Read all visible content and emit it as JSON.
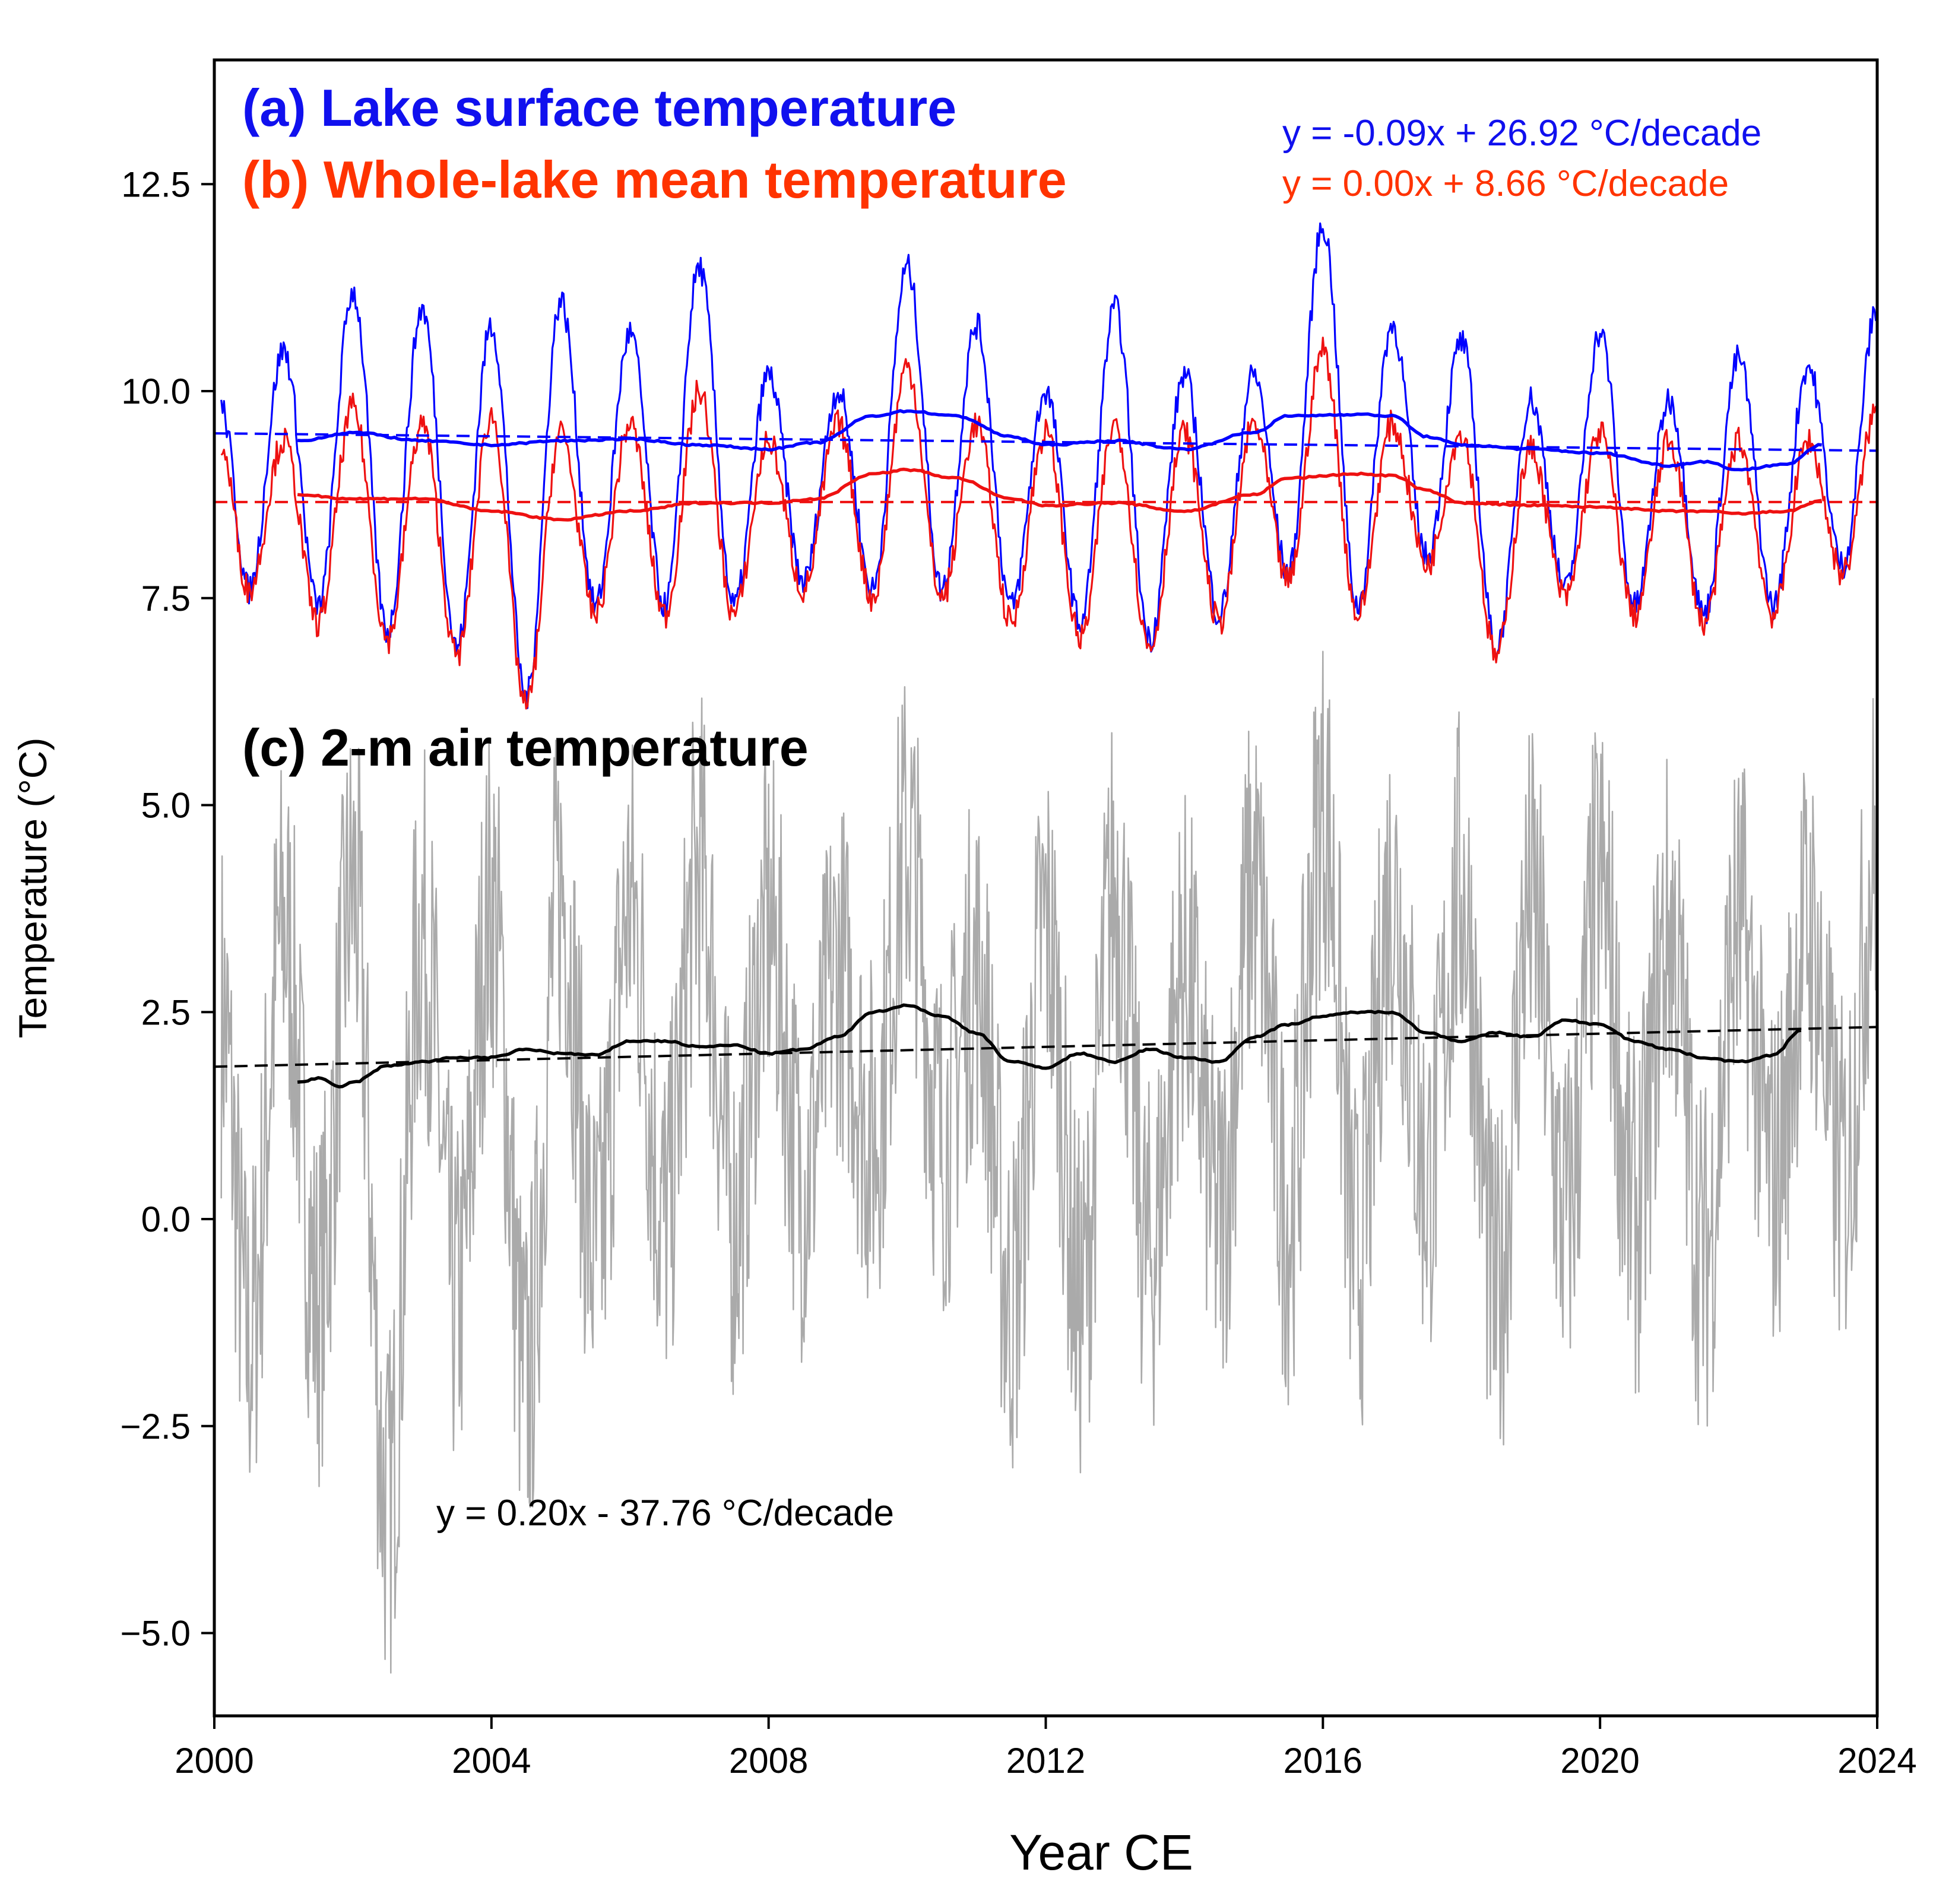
{
  "chart_data": {
    "type": "line",
    "xlabel": "Year CE",
    "ylabel": "Temperature (°C)",
    "xlim": [
      2000,
      2024
    ],
    "ylim": [
      -6,
      14
    ],
    "x_ticks": [
      2000,
      2004,
      2008,
      2012,
      2016,
      2020,
      2024
    ],
    "x_tick_labels": [
      "2000",
      "2004",
      "2008",
      "2012",
      "2016",
      "2020",
      "2024"
    ],
    "y_ticks": [
      -5,
      -2.5,
      0,
      2.5,
      5,
      7.5,
      10,
      12.5
    ],
    "y_tick_labels": [
      "−5.0",
      "−2.5",
      "0.0",
      "2.5",
      "5.0",
      "7.5",
      "10.0",
      "12.5"
    ],
    "grid": false,
    "panel_labels": [
      {
        "text": "(a) Lake surface temperature",
        "color": "#1010ee"
      },
      {
        "text": "(b) Whole-lake mean temperature",
        "color": "#ff3300"
      },
      {
        "text": "(c) 2-m air temperature",
        "color": "#000000"
      }
    ],
    "annotations": [
      {
        "text": "y = -0.09x + 26.92 °C/decade",
        "color": "#1010ee"
      },
      {
        "text": "y = 0.00x + 8.66 °C/decade",
        "color": "#ff3300"
      },
      {
        "text": "y = 0.20x - 37.76 °C/decade",
        "color": "#000000"
      }
    ],
    "series": [
      {
        "color": "#0000ff",
        "style": "thin",
        "x": [
          2000.1,
          2000.5,
          2001.0,
          2001.5,
          2002.0,
          2002.5,
          2003.0,
          2003.5,
          2004.0,
          2004.5,
          2005.0,
          2005.5,
          2006.0,
          2006.5,
          2007.0,
          2007.5,
          2008.0,
          2008.5,
          2009.0,
          2009.5,
          2010.0,
          2010.5,
          2011.0,
          2011.5,
          2012.0,
          2012.5,
          2013.0,
          2013.5,
          2014.0,
          2014.5,
          2015.0,
          2015.5,
          2016.0,
          2016.5,
          2017.0,
          2017.5,
          2018.0,
          2018.5,
          2019.0,
          2019.5,
          2020.0,
          2020.5,
          2021.0,
          2021.5,
          2022.0,
          2022.5,
          2023.0,
          2023.5,
          2024.0
        ],
        "y": [
          9.8,
          7.6,
          10.5,
          7.4,
          11.2,
          7.1,
          11.0,
          6.9,
          10.8,
          6.3,
          11.1,
          7.4,
          10.7,
          7.4,
          11.5,
          7.4,
          10.2,
          7.7,
          10.0,
          7.6,
          11.5,
          7.6,
          10.8,
          7.4,
          10.0,
          7.2,
          11.0,
          7.0,
          10.2,
          7.3,
          10.2,
          7.8,
          12.0,
          7.4,
          10.8,
          8.0,
          10.6,
          6.9,
          9.9,
          7.6,
          10.7,
          7.4,
          9.9,
          7.3,
          10.4,
          7.4,
          10.3,
          7.9,
          11.0
        ]
      },
      {
        "color": "#ee1111",
        "style": "thin",
        "x": [
          2000.1,
          2000.5,
          2001.0,
          2001.5,
          2002.0,
          2002.5,
          2003.0,
          2003.5,
          2004.0,
          2004.5,
          2005.0,
          2005.5,
          2006.0,
          2006.5,
          2007.0,
          2007.5,
          2008.0,
          2008.5,
          2009.0,
          2009.5,
          2010.0,
          2010.5,
          2011.0,
          2011.5,
          2012.0,
          2012.5,
          2013.0,
          2013.5,
          2014.0,
          2014.5,
          2015.0,
          2015.5,
          2016.0,
          2016.5,
          2017.0,
          2017.5,
          2018.0,
          2018.5,
          2019.0,
          2019.5,
          2020.0,
          2020.5,
          2021.0,
          2021.5,
          2022.0,
          2022.5,
          2023.0,
          2023.5,
          2024.0
        ],
        "y": [
          9.3,
          7.6,
          9.4,
          7.2,
          9.8,
          7.0,
          9.6,
          6.8,
          9.7,
          6.2,
          9.5,
          7.3,
          9.6,
          7.3,
          10.0,
          7.3,
          9.4,
          7.6,
          9.6,
          7.5,
          10.3,
          7.5,
          9.6,
          7.2,
          9.5,
          7.0,
          9.6,
          6.9,
          9.5,
          7.2,
          9.6,
          7.7,
          10.5,
          7.3,
          9.6,
          7.9,
          9.5,
          6.8,
          9.3,
          7.5,
          9.5,
          7.3,
          9.4,
          7.2,
          9.4,
          7.3,
          9.4,
          7.8,
          9.8
        ]
      },
      {
        "color": "#0000ff",
        "style": "running-mean",
        "x": [
          2001.2,
          2002.0,
          2003.0,
          2004.0,
          2005.0,
          2006.0,
          2007.0,
          2008.0,
          2008.7,
          2009.5,
          2010.0,
          2010.7,
          2011.5,
          2012.0,
          2013.0,
          2014.0,
          2015.0,
          2015.5,
          2016.5,
          2017.0,
          2017.5,
          2018.0,
          2019.0,
          2020.0,
          2021.0,
          2021.5,
          2022.0,
          2022.7,
          2023.2
        ],
        "y": [
          9.4,
          9.5,
          9.4,
          9.35,
          9.4,
          9.42,
          9.35,
          9.3,
          9.38,
          9.7,
          9.76,
          9.7,
          9.45,
          9.35,
          9.4,
          9.3,
          9.5,
          9.7,
          9.72,
          9.7,
          9.45,
          9.35,
          9.3,
          9.25,
          9.1,
          9.15,
          9.05,
          9.12,
          9.35
        ]
      },
      {
        "color": "#ee1111",
        "style": "running-mean",
        "x": [
          2001.2,
          2002.0,
          2003.0,
          2004.0,
          2005.0,
          2006.0,
          2007.0,
          2008.0,
          2008.7,
          2009.5,
          2010.0,
          2010.7,
          2011.5,
          2012.0,
          2013.0,
          2014.0,
          2015.0,
          2015.5,
          2016.5,
          2017.0,
          2017.5,
          2018.0,
          2019.0,
          2020.0,
          2021.0,
          2021.5,
          2022.0,
          2022.7,
          2023.2
        ],
        "y": [
          8.75,
          8.7,
          8.7,
          8.55,
          8.45,
          8.55,
          8.65,
          8.65,
          8.7,
          9.0,
          9.05,
          8.95,
          8.7,
          8.62,
          8.65,
          8.55,
          8.75,
          8.95,
          9.0,
          8.98,
          8.8,
          8.65,
          8.62,
          8.6,
          8.55,
          8.55,
          8.52,
          8.55,
          8.68
        ]
      },
      {
        "color": "#0000ff",
        "style": "trend-dashed",
        "x": [
          2000,
          2024
        ],
        "y": [
          9.49,
          9.28
        ]
      },
      {
        "color": "#ee1111",
        "style": "trend-dashed",
        "x": [
          2000,
          2024
        ],
        "y": [
          8.66,
          8.66
        ]
      },
      {
        "color": "#aaaaaa",
        "style": "thin-noisy",
        "x": [
          2000.1,
          2000.5,
          2001.0,
          2001.5,
          2002.0,
          2002.5,
          2003.0,
          2003.5,
          2004.0,
          2004.5,
          2005.0,
          2005.5,
          2006.0,
          2006.5,
          2007.0,
          2007.5,
          2008.0,
          2008.5,
          2009.0,
          2009.5,
          2010.0,
          2010.5,
          2011.0,
          2011.5,
          2012.0,
          2012.5,
          2013.0,
          2013.5,
          2014.0,
          2014.5,
          2015.0,
          2015.5,
          2016.0,
          2016.5,
          2017.0,
          2017.5,
          2018.0,
          2018.5,
          2019.0,
          2019.5,
          2020.0,
          2020.5,
          2021.0,
          2021.5,
          2022.0,
          2022.5,
          2023.0,
          2023.5,
          2024.0
        ],
        "y": [
          2.5,
          -1.5,
          3.5,
          -1.0,
          4.0,
          -3.5,
          3.5,
          -1.0,
          3.8,
          -2.0,
          4.0,
          -0.5,
          3.8,
          0.0,
          4.2,
          0.0,
          3.5,
          0.5,
          3.0,
          1.0,
          4.5,
          1.0,
          3.0,
          -1.0,
          3.5,
          -1.0,
          4.0,
          -0.5,
          3.0,
          0.0,
          4.0,
          0.0,
          5.0,
          -0.5,
          4.0,
          0.5,
          4.0,
          -1.0,
          3.8,
          0.0,
          4.0,
          0.0,
          3.5,
          -0.5,
          3.5,
          0.5,
          3.5,
          0.5,
          4.5
        ]
      },
      {
        "color": "#000000",
        "style": "running-mean",
        "x": [
          2001.2,
          2001.5,
          2001.8,
          2002.0,
          2002.5,
          2003.0,
          2003.5,
          2004.0,
          2004.5,
          2005.0,
          2005.5,
          2006.0,
          2006.5,
          2007.0,
          2007.5,
          2008.0,
          2008.5,
          2009.0,
          2009.5,
          2010.0,
          2010.5,
          2011.0,
          2011.5,
          2012.0,
          2012.5,
          2013.0,
          2013.5,
          2014.0,
          2014.5,
          2015.0,
          2015.5,
          2016.0,
          2016.5,
          2017.0,
          2017.5,
          2018.0,
          2018.5,
          2019.0,
          2019.5,
          2020.0,
          2020.5,
          2021.0,
          2021.5,
          2022.0,
          2022.5,
          2022.9
        ],
        "y": [
          1.65,
          1.7,
          1.6,
          1.65,
          1.85,
          1.9,
          1.95,
          1.95,
          2.05,
          2.0,
          1.98,
          2.15,
          2.15,
          2.08,
          2.1,
          2.0,
          2.05,
          2.2,
          2.5,
          2.58,
          2.45,
          2.25,
          1.9,
          1.83,
          2.0,
          1.9,
          2.05,
          1.95,
          1.9,
          2.2,
          2.35,
          2.45,
          2.5,
          2.5,
          2.25,
          2.15,
          2.25,
          2.2,
          2.4,
          2.35,
          2.15,
          2.05,
          1.95,
          1.9,
          1.98,
          2.28
        ]
      },
      {
        "color": "#000000",
        "style": "trend-dashed",
        "x": [
          2000,
          2024
        ],
        "y": [
          1.84,
          2.32
        ]
      }
    ]
  }
}
